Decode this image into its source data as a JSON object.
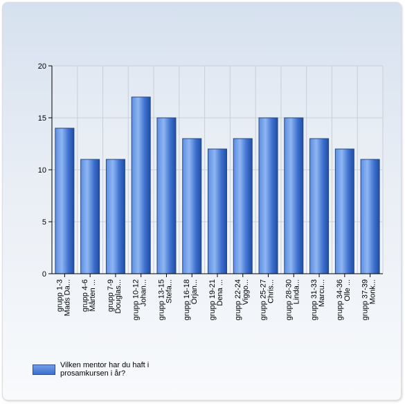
{
  "chart_data": {
    "type": "bar",
    "categories": [
      "grupp 1-3\nMads Da...",
      "grupp 4-6\nMårten ...",
      "grupp 7-9\nDouglas...",
      "grupp 10-12\nJohan...",
      "grupp 13-15\nStefa...",
      "grupp 16-18\nÖrjan...",
      "grupp 19-21\nDena ...",
      "grupp 22-24\nViggo...",
      "grupp 25-27\nChris...",
      "grupp 28-30\nLinda...",
      "grupp 31-33\nMarcu...",
      "grupp 34-36\nOlle ...",
      "grupp 37-39\nMonk..."
    ],
    "series": [
      {
        "name": "Vilken mentor har du haft i prosamkursen i år?",
        "values": [
          14,
          11,
          11,
          17,
          15,
          13,
          12,
          13,
          15,
          15,
          13,
          12,
          11
        ]
      }
    ],
    "ylim": [
      0,
      20
    ],
    "yticks": [
      0,
      5,
      10,
      15,
      20
    ],
    "grid": true,
    "legend_position": "bottom-left",
    "colors": {
      "bar_light": "#7ea9ec",
      "bar_dark": "#1f4ea6",
      "bar_edge": "#27487e",
      "grid": "#c9cfd8",
      "axis": "#000000"
    }
  },
  "legend": {
    "label": "Vilken mentor har du haft i prosamkursen i år?"
  }
}
